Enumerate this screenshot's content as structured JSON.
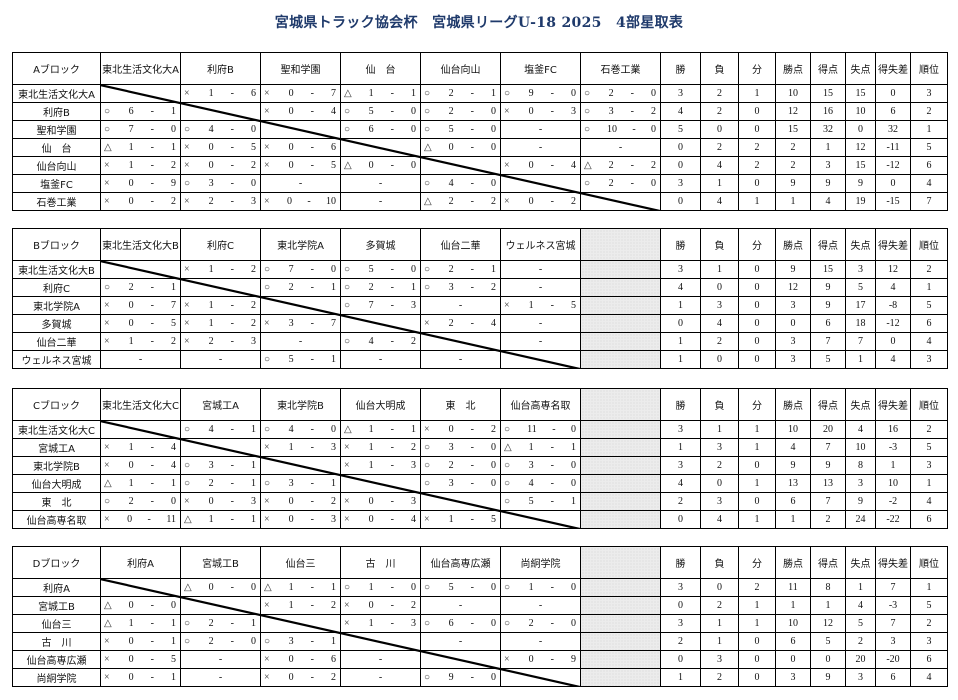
{
  "title": "宮城県トラック協会杯　宮城県リーグU-18 2025　4部星取表",
  "stat_headers": [
    "勝",
    "負",
    "分",
    "勝点",
    "得点",
    "失点",
    "得失差",
    "順位"
  ],
  "blocks": [
    {
      "label": "Aブロック",
      "teams": [
        "東北生活文化大A",
        "利府B",
        "聖和学園",
        "仙　台",
        "仙台向山",
        "塩釜FC",
        "石巻工業"
      ],
      "gray_column": false,
      "results": [
        [
          null,
          "× 1 - 6",
          "× 0 - 7",
          "△ 1 - 1",
          "○ 2 - 1",
          "○ 9 - 0",
          "○ 2 - 0"
        ],
        [
          "○ 6 - 1",
          null,
          "× 0 - 4",
          "○ 5 - 0",
          "○ 2 - 0",
          "× 0 - 3",
          "○ 3 - 2"
        ],
        [
          "○ 7 - 0",
          "○ 4 - 0",
          null,
          "○ 6 - 0",
          "○ 5 - 0",
          "-",
          "○ 10 - 0"
        ],
        [
          "△ 1 - 1",
          "× 0 - 5",
          "× 0 - 6",
          null,
          "△ 0 - 0",
          "-",
          "-"
        ],
        [
          "× 1 - 2",
          "× 0 - 2",
          "× 0 - 5",
          "△ 0 - 0",
          null,
          "× 0 - 4",
          "△ 2 - 2"
        ],
        [
          "× 0 - 9",
          "○ 3 - 0",
          "-",
          "-",
          "○ 4 - 0",
          null,
          "○ 2 - 0"
        ],
        [
          "× 0 - 2",
          "× 2 - 3",
          "× 0 - 10",
          "-",
          "△ 2 - 2",
          "× 0 - 2",
          null
        ]
      ],
      "stats": [
        [
          "3",
          "2",
          "1",
          "10",
          "15",
          "15",
          "0",
          "3"
        ],
        [
          "4",
          "2",
          "0",
          "12",
          "16",
          "10",
          "6",
          "2"
        ],
        [
          "5",
          "0",
          "0",
          "15",
          "32",
          "0",
          "32",
          "1"
        ],
        [
          "0",
          "2",
          "2",
          "2",
          "1",
          "12",
          "-11",
          "5"
        ],
        [
          "0",
          "4",
          "2",
          "2",
          "3",
          "15",
          "-12",
          "6"
        ],
        [
          "3",
          "1",
          "0",
          "9",
          "9",
          "9",
          "0",
          "4"
        ],
        [
          "0",
          "4",
          "1",
          "1",
          "4",
          "19",
          "-15",
          "7"
        ]
      ]
    },
    {
      "label": "Bブロック",
      "teams": [
        "東北生活文化大B",
        "利府C",
        "東北学院A",
        "多賀城",
        "仙台二華",
        "ウェルネス宮城"
      ],
      "gray_column": true,
      "results": [
        [
          null,
          "× 1 - 2",
          "○ 7 - 0",
          "○ 5 - 0",
          "○ 2 - 1",
          "-"
        ],
        [
          "○ 2 - 1",
          null,
          "○ 2 - 1",
          "○ 2 - 1",
          "○ 3 - 2",
          "-"
        ],
        [
          "× 0 - 7",
          "× 1 - 2",
          null,
          "○ 7 - 3",
          "-",
          "× 1 - 5"
        ],
        [
          "× 0 - 5",
          "× 1 - 2",
          "× 3 - 7",
          null,
          "× 2 - 4",
          "-"
        ],
        [
          "× 1 - 2",
          "× 2 - 3",
          "-",
          "○ 4 - 2",
          null,
          "-"
        ],
        [
          "-",
          "-",
          "○ 5 - 1",
          "-",
          "-",
          null
        ]
      ],
      "stats": [
        [
          "3",
          "1",
          "0",
          "9",
          "15",
          "3",
          "12",
          "2"
        ],
        [
          "4",
          "0",
          "0",
          "12",
          "9",
          "5",
          "4",
          "1"
        ],
        [
          "1",
          "3",
          "0",
          "3",
          "9",
          "17",
          "-8",
          "5"
        ],
        [
          "0",
          "4",
          "0",
          "0",
          "6",
          "18",
          "-12",
          "6"
        ],
        [
          "1",
          "2",
          "0",
          "3",
          "7",
          "7",
          "0",
          "4"
        ],
        [
          "1",
          "0",
          "0",
          "3",
          "5",
          "1",
          "4",
          "3"
        ]
      ]
    },
    {
      "label": "Cブロック",
      "teams": [
        "東北生活文化大C",
        "宮城工A",
        "東北学院B",
        "仙台大明成",
        "東　北",
        "仙台高専名取"
      ],
      "gray_column": true,
      "results": [
        [
          null,
          "○ 4 - 1",
          "○ 4 - 0",
          "△ 1 - 1",
          "× 0 - 2",
          "○ 11 - 0"
        ],
        [
          "× 1 - 4",
          null,
          "× 1 - 3",
          "× 1 - 2",
          "○ 3 - 0",
          "△ 1 - 1"
        ],
        [
          "× 0 - 4",
          "○ 3 - 1",
          null,
          "× 1 - 3",
          "○ 2 - 0",
          "○ 3 - 0"
        ],
        [
          "△ 1 - 1",
          "○ 2 - 1",
          "○ 3 - 1",
          null,
          "○ 3 - 0",
          "○ 4 - 0"
        ],
        [
          "○ 2 - 0",
          "× 0 - 3",
          "× 0 - 2",
          "× 0 - 3",
          null,
          "○ 5 - 1"
        ],
        [
          "× 0 - 11",
          "△ 1 - 1",
          "× 0 - 3",
          "× 0 - 4",
          "× 1 - 5",
          null
        ]
      ],
      "stats": [
        [
          "3",
          "1",
          "1",
          "10",
          "20",
          "4",
          "16",
          "2"
        ],
        [
          "1",
          "3",
          "1",
          "4",
          "7",
          "10",
          "-3",
          "5"
        ],
        [
          "3",
          "2",
          "0",
          "9",
          "9",
          "8",
          "1",
          "3"
        ],
        [
          "4",
          "0",
          "1",
          "13",
          "13",
          "3",
          "10",
          "1"
        ],
        [
          "2",
          "3",
          "0",
          "6",
          "7",
          "9",
          "-2",
          "4"
        ],
        [
          "0",
          "4",
          "1",
          "1",
          "2",
          "24",
          "-22",
          "6"
        ]
      ]
    },
    {
      "label": "Dブロック",
      "teams": [
        "利府A",
        "宮城工B",
        "仙台三",
        "古　川",
        "仙台高専広瀬",
        "尚絅学院"
      ],
      "gray_column": true,
      "results": [
        [
          null,
          "△ 0 - 0",
          "△ 1 - 1",
          "○ 1 - 0",
          "○ 5 - 0",
          "○ 1 - 0"
        ],
        [
          "△ 0 - 0",
          null,
          "× 1 - 2",
          "× 0 - 2",
          "-",
          "-"
        ],
        [
          "△ 1 - 1",
          "○ 2 - 1",
          null,
          "× 1 - 3",
          "○ 6 - 0",
          "○ 2 - 0"
        ],
        [
          "× 0 - 1",
          "○ 2 - 0",
          "○ 3 - 1",
          null,
          "-",
          "-"
        ],
        [
          "× 0 - 5",
          "-",
          "× 0 - 6",
          "-",
          null,
          "× 0 - 9"
        ],
        [
          "× 0 - 1",
          "-",
          "× 0 - 2",
          "-",
          "○ 9 - 0",
          null
        ]
      ],
      "stats": [
        [
          "3",
          "0",
          "2",
          "11",
          "8",
          "1",
          "7",
          "1"
        ],
        [
          "0",
          "2",
          "1",
          "1",
          "1",
          "4",
          "-3",
          "5"
        ],
        [
          "3",
          "1",
          "1",
          "10",
          "12",
          "5",
          "7",
          "2"
        ],
        [
          "2",
          "1",
          "0",
          "6",
          "5",
          "2",
          "3",
          "3"
        ],
        [
          "0",
          "3",
          "0",
          "0",
          "0",
          "20",
          "-20",
          "6"
        ],
        [
          "1",
          "2",
          "0",
          "3",
          "9",
          "3",
          "6",
          "4"
        ]
      ]
    }
  ]
}
